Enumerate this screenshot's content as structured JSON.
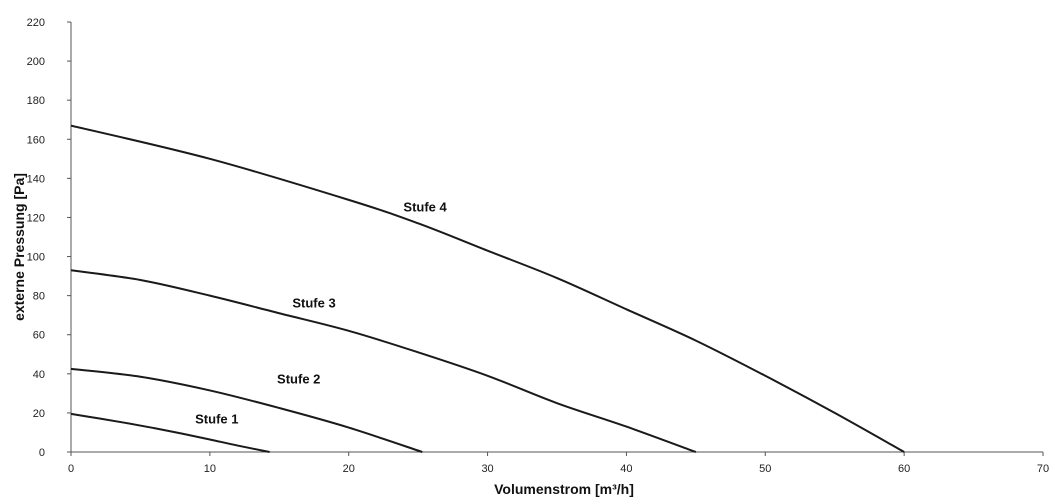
{
  "chart_data": {
    "type": "line",
    "xlabel": "Volumenstrom [m³/h]",
    "ylabel": "externe Pressung [Pa]",
    "xlim": [
      0,
      70
    ],
    "ylim": [
      0,
      220
    ],
    "xticks": [
      0,
      10,
      20,
      30,
      40,
      50,
      60,
      70
    ],
    "yticks": [
      0,
      20,
      40,
      60,
      80,
      100,
      120,
      140,
      160,
      180,
      200,
      220
    ],
    "grid": false,
    "series": [
      {
        "name": "Stufe 1",
        "x": [
          0,
          2,
          4,
          6,
          8,
          10,
          12,
          14.3
        ],
        "y": [
          19.5,
          17.2,
          14.8,
          12.2,
          9.4,
          6.4,
          3.3,
          0
        ],
        "label_at": [
          10.5,
          14.5
        ]
      },
      {
        "name": "Stufe 2",
        "x": [
          0,
          5,
          10,
          15,
          20,
          25.3
        ],
        "y": [
          42.5,
          38.5,
          31.5,
          22.5,
          12.5,
          0
        ],
        "label_at": [
          16.4,
          35
        ]
      },
      {
        "name": "Stufe 3",
        "x": [
          0,
          5,
          10,
          15,
          20,
          25,
          30,
          35,
          40,
          45
        ],
        "y": [
          93,
          88,
          80,
          71,
          62,
          51,
          39,
          25,
          13,
          0
        ],
        "label_at": [
          17.5,
          74
        ]
      },
      {
        "name": "Stufe 4",
        "x": [
          0,
          10,
          20,
          25,
          30,
          35,
          40,
          45,
          50,
          55,
          60
        ],
        "y": [
          167,
          150,
          129,
          117,
          103,
          89,
          73,
          57,
          39,
          20,
          0
        ],
        "label_at": [
          25.5,
          123
        ]
      }
    ]
  }
}
